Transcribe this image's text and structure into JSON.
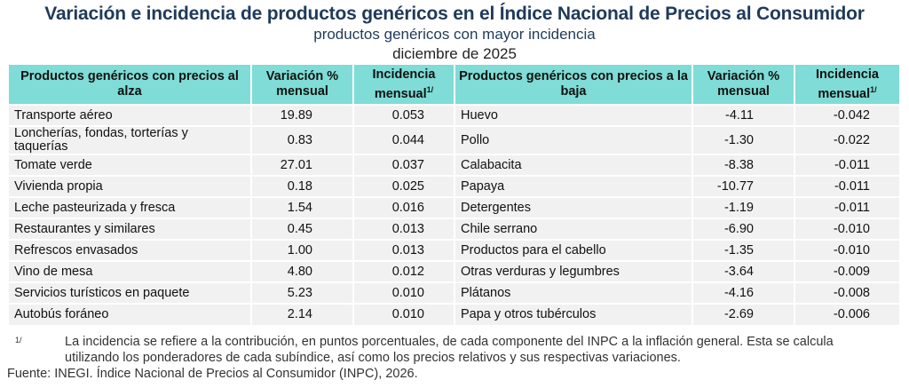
{
  "title": "Variación e incidencia de productos genéricos en el Índice Nacional de Precios al Consumidor",
  "subtitle": "productos genéricos con mayor incidencia",
  "period": "diciembre de 2025",
  "headers": {
    "up_products": "Productos genéricos con precios al alza",
    "variation": "Variación % mensual",
    "incidence": "Incidencia mensual",
    "down_products": "Productos genéricos con precios a la baja",
    "note_mark": "1/"
  },
  "rows": [
    {
      "up": "Transporte aéreo",
      "up_var": "19.89",
      "up_inc": "0.053",
      "down": "Huevo",
      "down_var": "-4.11",
      "down_inc": "-0.042"
    },
    {
      "up": "Loncherías, fondas, torterías y taquerías",
      "up_var": "0.83",
      "up_inc": "0.044",
      "down": "Pollo",
      "down_var": "-1.30",
      "down_inc": "-0.022"
    },
    {
      "up": "Tomate verde",
      "up_var": "27.01",
      "up_inc": "0.037",
      "down": "Calabacita",
      "down_var": "-8.38",
      "down_inc": "-0.011"
    },
    {
      "up": "Vivienda propia",
      "up_var": "0.18",
      "up_inc": "0.025",
      "down": "Papaya",
      "down_var": "-10.77",
      "down_inc": "-0.011"
    },
    {
      "up": "Leche pasteurizada y fresca",
      "up_var": "1.54",
      "up_inc": "0.016",
      "down": "Detergentes",
      "down_var": "-1.19",
      "down_inc": "-0.011"
    },
    {
      "up": "Restaurantes y similares",
      "up_var": "0.45",
      "up_inc": "0.013",
      "down": "Chile serrano",
      "down_var": "-6.90",
      "down_inc": "-0.010"
    },
    {
      "up": "Refrescos envasados",
      "up_var": "1.00",
      "up_inc": "0.013",
      "down": "Productos para el cabello",
      "down_var": "-1.35",
      "down_inc": "-0.010"
    },
    {
      "up": "Vino de mesa",
      "up_var": "4.80",
      "up_inc": "0.012",
      "down": "Otras verduras y legumbres",
      "down_var": "-3.64",
      "down_inc": "-0.009"
    },
    {
      "up": "Servicios turísticos en paquete",
      "up_var": "5.23",
      "up_inc": "0.010",
      "down": "Plátanos",
      "down_var": "-4.16",
      "down_inc": "-0.008"
    },
    {
      "up": "Autobús foráneo",
      "up_var": "2.14",
      "up_inc": "0.010",
      "down": "Papa y otros tubérculos",
      "down_var": "-2.69",
      "down_inc": "-0.006"
    }
  ],
  "footnote": {
    "mark": "1/",
    "text": "La incidencia se refiere a la contribución, en puntos porcentuales, de cada componente del INPC a la inflación general. Esta se calcula utilizando los ponderadores de cada subíndice, así como los precios relativos y sus respectivas variaciones."
  },
  "source": "Fuente: INEGI. Índice Nacional de Precios al Consumidor (INPC), 2026.",
  "colors": {
    "header_bg": "#7fdcd6",
    "title": "#1f3a5a",
    "row_bg": "#f1f1f1"
  }
}
